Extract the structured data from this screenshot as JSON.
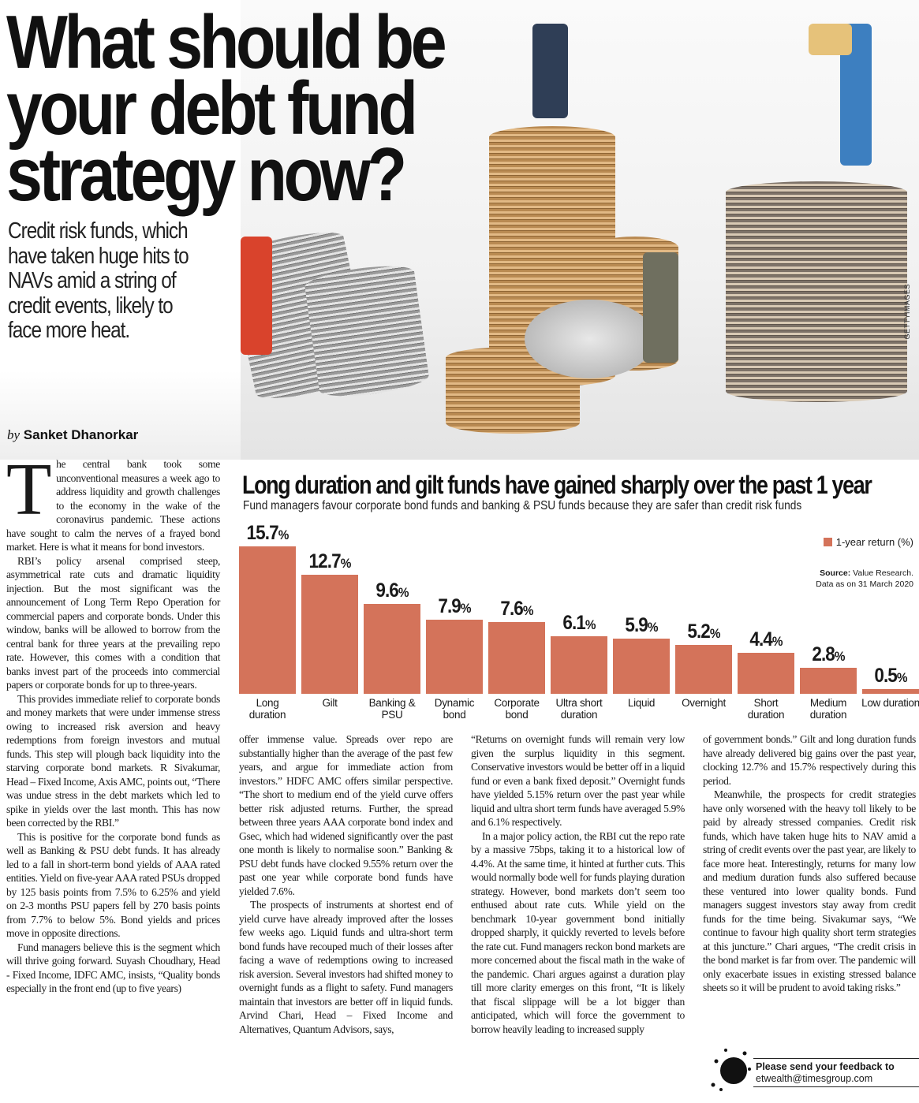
{
  "headline": "What should be your debt fund strategy now?",
  "deck": "Credit risk funds, which have taken huge hits to NAVs amid a string of credit events, likely to face more heat.",
  "byline": {
    "prefix": "by",
    "author": "Sanket Dhanorkar"
  },
  "photo_credit": "GETTYIMAGES",
  "chart_data": {
    "type": "bar",
    "title": "Long duration and gilt funds have gained sharply over the past 1 year",
    "subtitle": "Fund managers favour corporate bond funds and banking & PSU funds because they are safer than credit risk funds",
    "categories": [
      "Long duration",
      "Gilt",
      "Banking & PSU",
      "Dynamic bond",
      "Corporate bond",
      "Ultra short duration",
      "Liquid",
      "Overnight",
      "Short duration",
      "Medium duration",
      "Low duration"
    ],
    "series": [
      {
        "name": "1-year return (%)",
        "values": [
          15.7,
          12.7,
          9.6,
          7.9,
          7.6,
          6.1,
          5.9,
          5.2,
          4.4,
          2.8,
          0.5
        ]
      }
    ],
    "value_labels": [
      "15.7",
      "12.7",
      "9.6",
      "7.9",
      "7.6",
      "6.1",
      "5.9",
      "5.2",
      "4.4",
      "2.8",
      "0.5"
    ],
    "unit": "%",
    "legend": "top-right",
    "source_label": "Source:",
    "source": "Value Research.",
    "note": "Data as on 31 March 2020",
    "color": "#d4735a"
  },
  "columns": [
    [
      "The central bank took some unconventional measures a week ago to address liquidity and growth challenges to the economy in the wake of the coronavirus pandemic. These actions have sought to calm the nerves of a frayed bond market. Here is what it means for bond investors.",
      "RBI’s policy arsenal comprised steep, asymmetrical rate cuts and dramatic liquidity injection. But the most significant was the announcement of Long Term Repo Operation for commercial papers and corporate bonds. Under this window, banks will be allowed to borrow from the central bank for three years at the prevailing repo rate. However, this comes with a condition that banks invest part of the proceeds into commercial papers or corporate bonds for up to three-years.",
      "This provides immediate relief to corporate bonds and money markets that were under immense stress owing to increased risk aversion and heavy redemptions from foreign investors and mutual funds. This step will plough back liquidity into the starving corporate bond markets. R Sivakumar, Head – Fixed Income, Axis AMC, points out, “There was undue stress in the debt markets which led to spike in yields over the last month. This has now been corrected by the RBI.”",
      "This is positive for the corporate bond funds as well as Banking & PSU debt funds. It has already led to a fall in short-term bond yields of AAA rated entities. Yield on five-year AAA rated PSUs dropped by 125 basis points from 7.5% to 6.25% and yield on 2-3 months PSU papers fell by 270 basis points from 7.7% to below 5%. Bond yields and prices move in opposite directions.",
      "Fund managers believe this is the segment which will thrive going forward. Suyash Choudhary, Head - Fixed Income, IDFC AMC, insists, “Quality bonds especially in the front end (up to five years)"
    ],
    [
      "offer immense value. Spreads over repo are substantially higher than the average of the past few years, and argue for immediate action from investors.” HDFC AMC offers similar perspective. “The short to medium end of the yield curve offers better risk adjusted returns. Further, the spread between three years AAA corporate bond index and Gsec, which had widened significantly over the past one month is likely to normalise soon.” Banking & PSU debt funds have clocked 9.55% return over the past one year while corporate bond funds have yielded 7.6%.",
      "The prospects of instruments at shortest end of yield curve have already improved after the losses few weeks ago. Liquid funds and ultra-short term bond funds have recouped much of their losses after facing a wave of redemptions owing to increased risk aversion. Several investors had shifted money to overnight funds as a flight to safety. Fund managers maintain that investors are better off in liquid funds. Arvind Chari, Head – Fixed Income and Alternatives, Quantum Advisors, says,"
    ],
    [
      "“Returns on overnight funds will remain very low given the surplus liquidity in this segment. Conservative investors would be better off in a liquid fund or even a bank fixed deposit.” Overnight funds have yielded 5.15% return over the past year while liquid and ultra short term funds have averaged 5.9% and 6.1% respectively.",
      "In a major policy action, the RBI cut the repo rate by a massive 75bps, taking it to a historical low of 4.4%. At the same time, it hinted at further cuts. This would normally bode well for funds playing duration strategy. However, bond markets don’t seem too enthused about rate cuts. While yield on the benchmark 10-year government bond initially dropped sharply, it quickly reverted to levels before the rate cut. Fund managers reckon bond markets are more concerned about the fiscal math in the wake of the pandemic. Chari argues against a duration play till more clarity emerges on this front, “It is likely that fiscal slippage will be a lot bigger than anticipated, which will force the government to borrow heavily leading to increased supply"
    ],
    [
      "of government bonds.” Gilt and long duration funds have already delivered big gains over the past year, clocking 12.7% and 15.7% respectively during this period.",
      "Meanwhile, the prospects for credit strategies have only worsened with the heavy toll likely to be paid by already stressed companies. Credit risk funds, which have taken huge hits to NAV amid a string of credit events over the past year, are likely to face more heat. Interestingly, returns for many low and medium duration funds also suffered because these ventured into lower quality bonds. Fund managers suggest investors stay away from credit funds for the time being. Sivakumar says, “We continue to favour high quality short term strategies at this juncture.” Chari argues, “The credit crisis in the bond market is far from over. The pandemic will only exacerbate issues in existing stressed balance sheets so it will be prudent to avoid taking risks.”"
    ]
  ],
  "feedback": {
    "line1": "Please send your feedback to",
    "email": "etwealth@timesgroup.com"
  }
}
